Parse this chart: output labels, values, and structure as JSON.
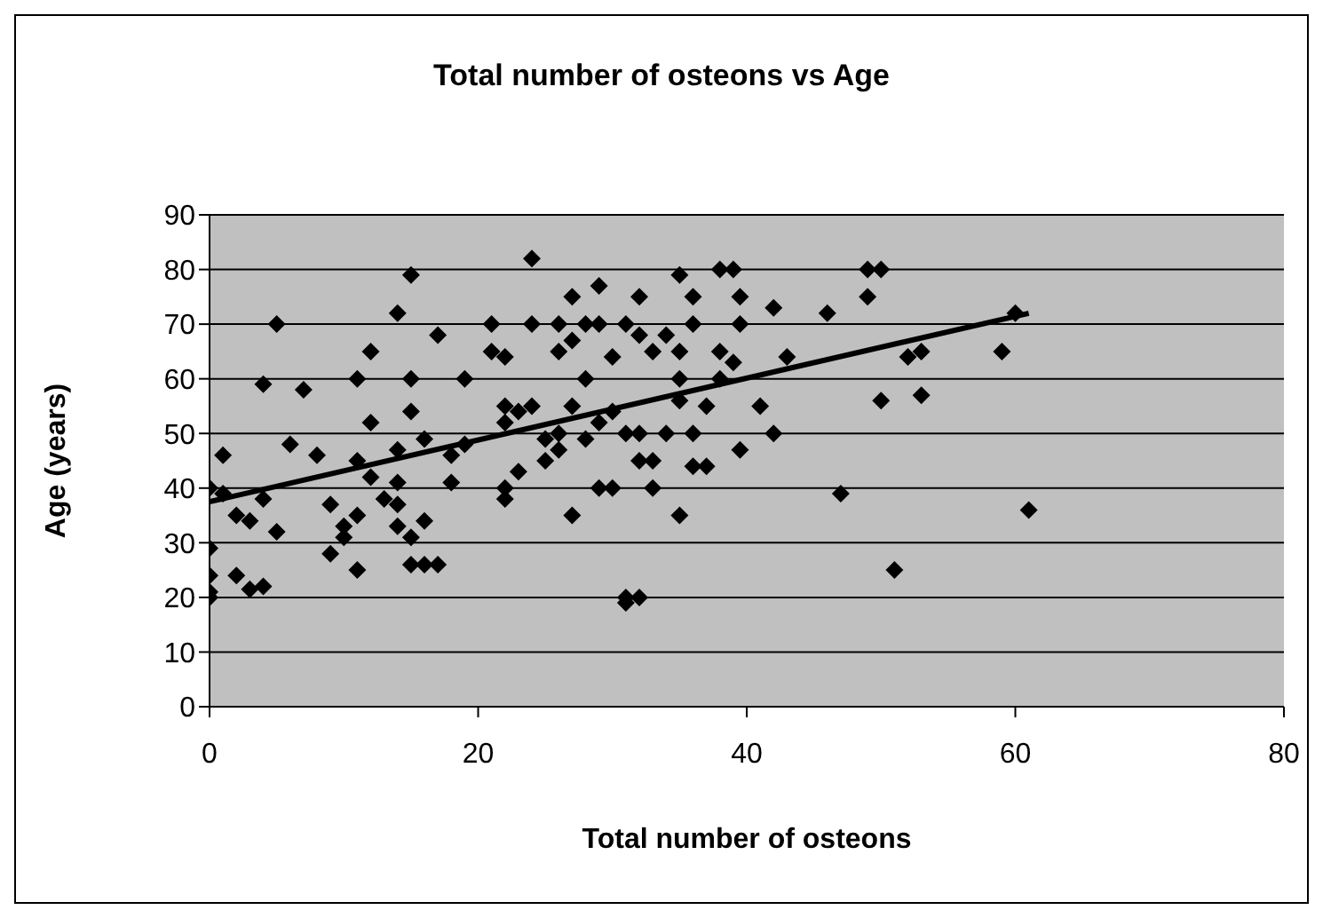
{
  "chart_data": {
    "type": "scatter",
    "title": "Total number of osteons vs Age",
    "xlabel": "Total number of osteons",
    "ylabel": "Age (years)",
    "xlim": [
      0,
      80
    ],
    "xticks": [
      0,
      20,
      40,
      60,
      80
    ],
    "ylim": [
      0,
      90
    ],
    "yticks": [
      0,
      10,
      20,
      30,
      40,
      50,
      60,
      70,
      80,
      90
    ],
    "grid": "y",
    "legend": false,
    "marker": "diamond",
    "series": [
      {
        "color": "#000000",
        "x": [
          0,
          0,
          0,
          0,
          0,
          1,
          1,
          2,
          2,
          3,
          3,
          4,
          4,
          4,
          5,
          5,
          6,
          7,
          8,
          9,
          9,
          10,
          10,
          11,
          11,
          11,
          11,
          12,
          12,
          12,
          13,
          14,
          14,
          14,
          14,
          14,
          15,
          15,
          15,
          15,
          15,
          16,
          16,
          16,
          17,
          17,
          18,
          18,
          19,
          19,
          21,
          21,
          22,
          22,
          22,
          22,
          22,
          23,
          23,
          24,
          24,
          24,
          25,
          25,
          26,
          26,
          26,
          26,
          27,
          27,
          27,
          27,
          28,
          28,
          28,
          29,
          29,
          29,
          29,
          30,
          30,
          30,
          31,
          31,
          31,
          31,
          32,
          32,
          32,
          32,
          32,
          33,
          33,
          33,
          34,
          34,
          35,
          35,
          35,
          35,
          35,
          36,
          36,
          36,
          36,
          37,
          37,
          38,
          38,
          38,
          39,
          39,
          39.5,
          39.5,
          39.5,
          41,
          42,
          42,
          43,
          46,
          47,
          49,
          49,
          50,
          50,
          51,
          52,
          53,
          53,
          59,
          60,
          61
        ],
        "values": [
          40,
          29,
          24,
          21,
          20,
          46,
          39,
          35,
          24,
          34,
          21.5,
          59,
          38,
          22,
          70,
          32,
          48,
          58,
          46,
          37,
          28,
          33,
          31,
          35,
          45,
          60,
          25,
          65,
          52,
          42,
          38,
          72,
          47,
          41,
          37,
          33,
          79,
          60,
          54,
          31,
          26,
          49,
          34,
          26,
          26,
          68,
          46,
          41,
          60,
          48,
          70,
          65,
          64,
          55,
          52,
          40,
          38,
          43,
          54,
          82,
          70,
          55,
          49,
          45,
          70,
          65,
          50,
          47,
          67,
          75,
          55,
          35,
          70,
          60,
          49,
          77,
          70,
          52,
          40,
          64,
          54,
          40,
          70,
          50,
          19,
          20,
          75,
          68,
          50,
          45,
          20,
          65,
          45,
          40,
          68,
          50,
          79,
          65,
          60,
          56,
          35,
          75,
          70,
          50,
          44,
          55,
          44,
          80,
          65,
          60,
          80,
          63,
          75,
          70,
          47,
          55,
          73,
          50,
          64,
          72,
          39,
          80,
          75,
          80,
          56,
          25,
          64,
          65,
          57,
          65,
          72,
          36
        ]
      },
      {
        "type": "line",
        "color": "#000000",
        "marker": "none",
        "x": [
          0,
          61
        ],
        "values": [
          37.5,
          72
        ]
      }
    ]
  }
}
